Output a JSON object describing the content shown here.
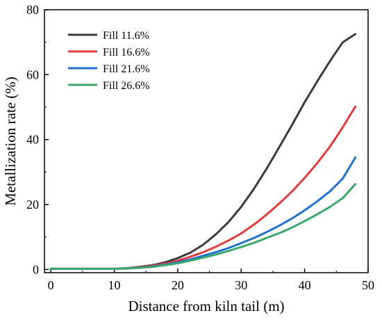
{
  "chart_data": {
    "type": "line",
    "title": "",
    "xlabel": "Distance from kiln tail (m)",
    "ylabel": "Metallization rate (%)",
    "xlim": [
      -1,
      50
    ],
    "ylim": [
      -1,
      80
    ],
    "xticks": [
      0,
      10,
      20,
      30,
      40,
      50
    ],
    "yticks": [
      0,
      20,
      40,
      60,
      80
    ],
    "grid": false,
    "legend_position": "top-left",
    "series": [
      {
        "name": "Fill 11.6%",
        "color": "#3a3a3a",
        "x": [
          0,
          10,
          12,
          14,
          16,
          18,
          20,
          22,
          24,
          26,
          28,
          30,
          32,
          34,
          36,
          38,
          40,
          42,
          44,
          46,
          48
        ],
        "y": [
          0.2,
          0.2,
          0.4,
          0.8,
          1.3,
          2.2,
          3.5,
          5.2,
          7.6,
          10.8,
          14.6,
          19.3,
          24.8,
          31.0,
          37.7,
          44.5,
          51.5,
          58.0,
          64.2,
          70.0,
          72.5
        ]
      },
      {
        "name": "Fill 16.6%",
        "color": "#e03c3c",
        "x": [
          0,
          10,
          12,
          14,
          16,
          18,
          20,
          22,
          24,
          26,
          28,
          30,
          32,
          34,
          36,
          38,
          40,
          42,
          44,
          46,
          48
        ],
        "y": [
          0.2,
          0.2,
          0.3,
          0.6,
          1.1,
          1.8,
          2.7,
          3.9,
          5.3,
          7.0,
          8.9,
          11.1,
          13.8,
          16.9,
          20.3,
          24.0,
          28.2,
          32.8,
          37.9,
          43.8,
          50.2
        ]
      },
      {
        "name": "Fill 21.6%",
        "color": "#1f6fcf",
        "x": [
          0,
          10,
          12,
          14,
          16,
          18,
          20,
          22,
          24,
          26,
          28,
          30,
          32,
          34,
          36,
          38,
          40,
          42,
          44,
          46,
          48
        ],
        "y": [
          0.2,
          0.2,
          0.3,
          0.5,
          0.9,
          1.5,
          2.2,
          3.1,
          4.2,
          5.3,
          6.6,
          8.1,
          9.7,
          11.5,
          13.5,
          15.7,
          18.2,
          21.0,
          24.1,
          28.0,
          34.5
        ]
      },
      {
        "name": "Fill 26.6%",
        "color": "#3aa86a",
        "x": [
          0,
          10,
          12,
          14,
          16,
          18,
          20,
          22,
          24,
          26,
          28,
          30,
          32,
          34,
          36,
          38,
          40,
          42,
          44,
          46,
          48
        ],
        "y": [
          0.2,
          0.2,
          0.3,
          0.5,
          0.8,
          1.3,
          1.9,
          2.7,
          3.6,
          4.6,
          5.7,
          6.9,
          8.2,
          9.7,
          11.2,
          12.9,
          14.9,
          17.0,
          19.3,
          22.0,
          26.3
        ]
      }
    ]
  }
}
